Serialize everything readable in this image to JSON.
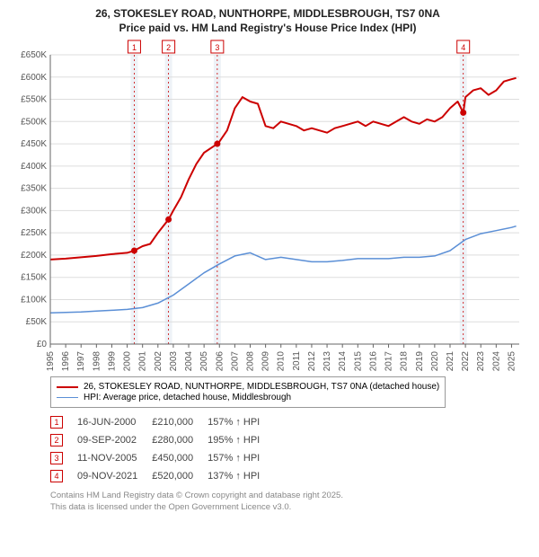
{
  "title_line1": "26, STOKESLEY ROAD, NUNTHORPE, MIDDLESBROUGH, TS7 0NA",
  "title_line2": "Price paid vs. HM Land Registry's House Price Index (HPI)",
  "chart": {
    "type": "line",
    "background_color": "#ffffff",
    "grid_color": "#dddddd",
    "axis_color": "#666666",
    "x": {
      "min": 1995,
      "max": 2025.5,
      "ticks": [
        1995,
        1996,
        1997,
        1998,
        1999,
        2000,
        2001,
        2002,
        2003,
        2004,
        2005,
        2006,
        2007,
        2008,
        2009,
        2010,
        2011,
        2012,
        2013,
        2014,
        2015,
        2016,
        2017,
        2018,
        2019,
        2020,
        2021,
        2022,
        2023,
        2024,
        2025
      ]
    },
    "y": {
      "min": 0,
      "max": 650000,
      "ticks": [
        0,
        50000,
        100000,
        150000,
        200000,
        250000,
        300000,
        350000,
        400000,
        450000,
        500000,
        550000,
        600000,
        650000
      ],
      "tick_labels": [
        "£0",
        "£50K",
        "£100K",
        "£150K",
        "£200K",
        "£250K",
        "£300K",
        "£350K",
        "£400K",
        "£450K",
        "£500K",
        "£550K",
        "£600K",
        "£650K"
      ]
    },
    "flag_bands": [
      {
        "x": 2000.46,
        "color": "#cc0000",
        "label": "1"
      },
      {
        "x": 2002.69,
        "color": "#cc0000",
        "label": "2"
      },
      {
        "x": 2005.86,
        "color": "#cc0000",
        "label": "3"
      },
      {
        "x": 2021.86,
        "color": "#cc0000",
        "label": "4"
      }
    ],
    "flag_band_fill": "#eef2f7",
    "flag_dash": "2,3",
    "series": [
      {
        "id": "price_paid",
        "label": "26, STOKESLEY ROAD, NUNTHORPE, MIDDLESBROUGH, TS7 0NA (detached house)",
        "color": "#cc0000",
        "width": 2,
        "points": [
          [
            1995,
            190000
          ],
          [
            1996,
            192000
          ],
          [
            1997,
            195000
          ],
          [
            1998,
            198000
          ],
          [
            1999,
            202000
          ],
          [
            2000,
            205000
          ],
          [
            2000.46,
            210000
          ],
          [
            2001,
            220000
          ],
          [
            2001.5,
            225000
          ],
          [
            2002,
            250000
          ],
          [
            2002.69,
            280000
          ],
          [
            2003,
            300000
          ],
          [
            2003.5,
            330000
          ],
          [
            2004,
            370000
          ],
          [
            2004.5,
            405000
          ],
          [
            2005,
            430000
          ],
          [
            2005.86,
            450000
          ],
          [
            2006,
            455000
          ],
          [
            2006.5,
            480000
          ],
          [
            2007,
            530000
          ],
          [
            2007.5,
            555000
          ],
          [
            2008,
            545000
          ],
          [
            2008.5,
            540000
          ],
          [
            2009,
            490000
          ],
          [
            2009.5,
            485000
          ],
          [
            2010,
            500000
          ],
          [
            2010.5,
            495000
          ],
          [
            2011,
            490000
          ],
          [
            2011.5,
            480000
          ],
          [
            2012,
            485000
          ],
          [
            2012.5,
            480000
          ],
          [
            2013,
            475000
          ],
          [
            2013.5,
            485000
          ],
          [
            2014,
            490000
          ],
          [
            2014.5,
            495000
          ],
          [
            2015,
            500000
          ],
          [
            2015.5,
            490000
          ],
          [
            2016,
            500000
          ],
          [
            2016.5,
            495000
          ],
          [
            2017,
            490000
          ],
          [
            2017.5,
            500000
          ],
          [
            2018,
            510000
          ],
          [
            2018.5,
            500000
          ],
          [
            2019,
            495000
          ],
          [
            2019.5,
            505000
          ],
          [
            2020,
            500000
          ],
          [
            2020.5,
            510000
          ],
          [
            2021,
            530000
          ],
          [
            2021.5,
            545000
          ],
          [
            2021.86,
            520000
          ],
          [
            2022,
            555000
          ],
          [
            2022.5,
            570000
          ],
          [
            2023,
            575000
          ],
          [
            2023.5,
            560000
          ],
          [
            2024,
            570000
          ],
          [
            2024.5,
            590000
          ],
          [
            2025,
            595000
          ],
          [
            2025.3,
            598000
          ]
        ],
        "markers": [
          [
            2000.46,
            210000
          ],
          [
            2002.69,
            280000
          ],
          [
            2005.86,
            450000
          ],
          [
            2021.86,
            520000
          ]
        ]
      },
      {
        "id": "hpi",
        "label": "HPI: Average price, detached house, Middlesbrough",
        "color": "#5b8fd6",
        "width": 1.5,
        "points": [
          [
            1995,
            70000
          ],
          [
            1996,
            71000
          ],
          [
            1997,
            72000
          ],
          [
            1998,
            74000
          ],
          [
            1999,
            76000
          ],
          [
            2000,
            78000
          ],
          [
            2001,
            82000
          ],
          [
            2002,
            92000
          ],
          [
            2003,
            110000
          ],
          [
            2004,
            135000
          ],
          [
            2005,
            160000
          ],
          [
            2006,
            180000
          ],
          [
            2007,
            198000
          ],
          [
            2008,
            205000
          ],
          [
            2009,
            190000
          ],
          [
            2010,
            195000
          ],
          [
            2011,
            190000
          ],
          [
            2012,
            185000
          ],
          [
            2013,
            185000
          ],
          [
            2014,
            188000
          ],
          [
            2015,
            192000
          ],
          [
            2016,
            192000
          ],
          [
            2017,
            192000
          ],
          [
            2018,
            195000
          ],
          [
            2019,
            195000
          ],
          [
            2020,
            198000
          ],
          [
            2021,
            210000
          ],
          [
            2022,
            235000
          ],
          [
            2023,
            248000
          ],
          [
            2024,
            255000
          ],
          [
            2025,
            262000
          ],
          [
            2025.3,
            265000
          ]
        ]
      }
    ],
    "marker_radius": 3.5
  },
  "legend": [
    {
      "swatch_color": "#cc0000",
      "swatch_width": 2.5,
      "text": "26, STOKESLEY ROAD, NUNTHORPE, MIDDLESBROUGH, TS7 0NA (detached house)"
    },
    {
      "swatch_color": "#5b8fd6",
      "swatch_width": 1.5,
      "text": "HPI: Average price, detached house, Middlesbrough"
    }
  ],
  "sales": [
    {
      "n": "1",
      "color": "#cc0000",
      "date": "16-JUN-2000",
      "price": "£210,000",
      "pct": "157% ↑ HPI"
    },
    {
      "n": "2",
      "color": "#cc0000",
      "date": "09-SEP-2002",
      "price": "£280,000",
      "pct": "195% ↑ HPI"
    },
    {
      "n": "3",
      "color": "#cc0000",
      "date": "11-NOV-2005",
      "price": "£450,000",
      "pct": "157% ↑ HPI"
    },
    {
      "n": "4",
      "color": "#cc0000",
      "date": "09-NOV-2021",
      "price": "£520,000",
      "pct": "137% ↑ HPI"
    }
  ],
  "footer_line1": "Contains HM Land Registry data © Crown copyright and database right 2025.",
  "footer_line2": "This data is licensed under the Open Government Licence v3.0."
}
